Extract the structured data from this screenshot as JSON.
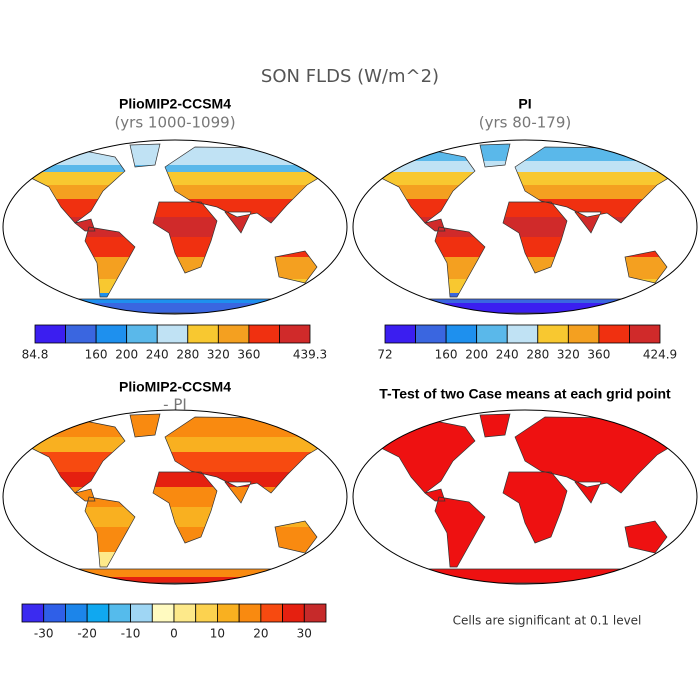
{
  "title": "SON FLDS (W/m^2)",
  "panels": [
    {
      "title": "PlioMIP2-CCSM4",
      "subtitle": "(yrs 1000-1099)",
      "colorbar": {
        "colors": [
          "#3b1ef0",
          "#3a66e0",
          "#1e90ee",
          "#5ab8ea",
          "#c0e2f4",
          "#f8c830",
          "#f4a020",
          "#f03010",
          "#d02a2a"
        ],
        "labels": [
          "84.8",
          null,
          "160",
          "200",
          "240",
          "280",
          "320",
          "360",
          null,
          "439.3"
        ]
      }
    },
    {
      "title": "PI",
      "subtitle": "(yrs 80-179)",
      "colorbar": {
        "colors": [
          "#3b1ef0",
          "#3a66e0",
          "#1e90ee",
          "#5ab8ea",
          "#c0e2f4",
          "#f8c830",
          "#f4a020",
          "#f03010",
          "#d02a2a"
        ],
        "labels": [
          "72",
          null,
          "160",
          "200",
          "240",
          "280",
          "320",
          "360",
          null,
          "424.9"
        ]
      }
    },
    {
      "title": "PlioMIP2-CCSM4",
      "subtitle": "- PI",
      "colorbar": {
        "colors": [
          "#3b2bf0",
          "#2f5fe8",
          "#1c85ea",
          "#10a8f0",
          "#55bbec",
          "#9fd6f4",
          "#fffac0",
          "#fde98a",
          "#fcd24f",
          "#f9b020",
          "#f98a10",
          "#f74a10",
          "#e52010",
          "#c62a2a"
        ],
        "labels": [
          null,
          "-30",
          null,
          "-20",
          null,
          "-10",
          null,
          "0",
          null,
          "10",
          null,
          "20",
          null,
          "30",
          null
        ]
      }
    },
    {
      "title": "T-Test of two Case means at each grid point"
    }
  ],
  "note": "Cells are significant at 0.1 level"
}
